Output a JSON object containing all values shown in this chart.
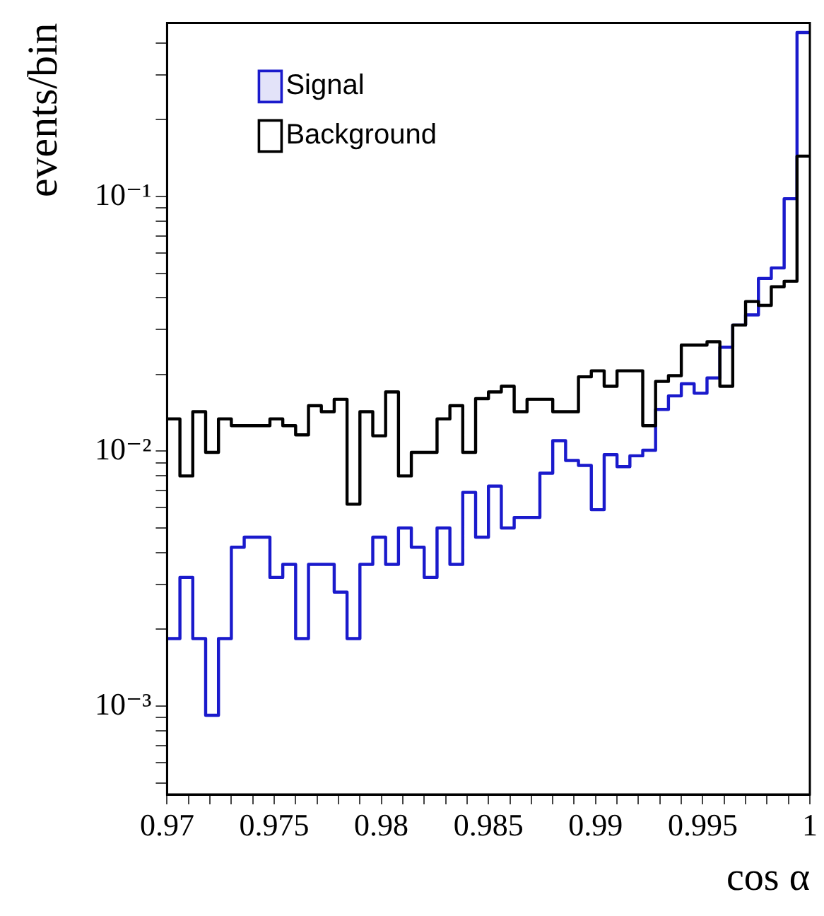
{
  "chart_data": {
    "type": "histogram",
    "xlabel": "cos α",
    "ylabel": "events/bin",
    "bins": [
      0.97,
      0.9706,
      0.9712,
      0.9718,
      0.9724,
      0.973,
      0.9736,
      0.9742,
      0.9748,
      0.9754,
      0.976,
      0.9766,
      0.9772,
      0.9778,
      0.9784,
      0.979,
      0.9796,
      0.9802,
      0.9808,
      0.9814,
      0.982,
      0.9826,
      0.9832,
      0.9838,
      0.9844,
      0.985,
      0.9856,
      0.9862,
      0.9868,
      0.9874,
      0.988,
      0.9886,
      0.9892,
      0.9898,
      0.9904,
      0.991,
      0.9916,
      0.9922,
      0.9928,
      0.9934,
      0.994,
      0.9946,
      0.9952,
      0.9958,
      0.9964,
      0.997,
      0.9976,
      0.9982,
      0.9988,
      0.9994,
      1
    ],
    "series": [
      {
        "name": "Signal",
        "color": "#1a1acc",
        "values": [
          0.00184,
          0.0032,
          0.00184,
          0.00092,
          0.00184,
          0.0042,
          0.0046,
          0.0046,
          0.0032,
          0.0036,
          0.00184,
          0.0036,
          0.0036,
          0.0028,
          0.00184,
          0.0036,
          0.0046,
          0.0036,
          0.005,
          0.0042,
          0.0032,
          0.005,
          0.0036,
          0.0069,
          0.0046,
          0.0073,
          0.005,
          0.0055,
          0.0055,
          0.0082,
          0.011,
          0.0092,
          0.0088,
          0.0059,
          0.0097,
          0.0087,
          0.0096,
          0.0101,
          0.0146,
          0.0165,
          0.0184,
          0.0169,
          0.0194,
          0.0256,
          0.0313,
          0.0343,
          0.0477,
          0.0524,
          0.098,
          0.44
        ]
      },
      {
        "name": "Background",
        "color": "#000000",
        "values": [
          0.0134,
          0.008,
          0.0143,
          0.0099,
          0.0134,
          0.0126,
          0.0126,
          0.0126,
          0.0134,
          0.0126,
          0.0116,
          0.0151,
          0.0143,
          0.016,
          0.0062,
          0.0143,
          0.0115,
          0.0171,
          0.008,
          0.0099,
          0.0099,
          0.0134,
          0.0151,
          0.0099,
          0.0161,
          0.0171,
          0.018,
          0.0143,
          0.016,
          0.016,
          0.0143,
          0.0143,
          0.0196,
          0.0207,
          0.018,
          0.0207,
          0.0207,
          0.0126,
          0.0188,
          0.0198,
          0.0261,
          0.0261,
          0.0269,
          0.018,
          0.0313,
          0.0387,
          0.0374,
          0.0442,
          0.0465,
          0.144
        ]
      }
    ],
    "xlim": [
      0.97,
      1
    ],
    "xticks": [
      0.97,
      {
        "value": 0.971,
        "label": null
      },
      {
        "value": 0.972,
        "label": null
      },
      {
        "value": 0.973,
        "label": null
      },
      {
        "value": 0.974,
        "label": null
      },
      0.975,
      {
        "value": 0.976,
        "label": null
      },
      {
        "value": 0.977,
        "label": null
      },
      {
        "value": 0.978,
        "label": null
      },
      {
        "value": 0.979,
        "label": null
      },
      0.98,
      {
        "value": 0.981,
        "label": null
      },
      {
        "value": 0.982,
        "label": null
      },
      {
        "value": 0.983,
        "label": null
      },
      {
        "value": 0.984,
        "label": null
      },
      0.985,
      {
        "value": 0.986,
        "label": null
      },
      {
        "value": 0.987,
        "label": null
      },
      {
        "value": 0.988,
        "label": null
      },
      {
        "value": 0.989,
        "label": null
      },
      0.99,
      {
        "value": 0.991,
        "label": null
      },
      {
        "value": 0.992,
        "label": null
      },
      {
        "value": 0.993,
        "label": null
      },
      {
        "value": 0.994,
        "label": null
      },
      0.995,
      {
        "value": 0.996,
        "label": null
      },
      {
        "value": 0.997,
        "label": null
      },
      {
        "value": 0.998,
        "label": null
      },
      {
        "value": 0.999,
        "label": null
      },
      1
    ],
    "ylim": [
      0.00045,
      0.48
    ],
    "log": true,
    "yticks": [
      {
        "value": 0.0005,
        "label": null
      },
      {
        "value": 0.0006,
        "label": null
      },
      {
        "value": 0.0007,
        "label": null
      },
      {
        "value": 0.0008,
        "label": null
      },
      {
        "value": 0.0009,
        "label": null
      },
      {
        "value": 0.001,
        "label": "10⁻³"
      },
      {
        "value": 0.002,
        "label": null
      },
      {
        "value": 0.003,
        "label": null
      },
      {
        "value": 0.004,
        "label": null
      },
      {
        "value": 0.005,
        "label": null
      },
      {
        "value": 0.006,
        "label": null
      },
      {
        "value": 0.007,
        "label": null
      },
      {
        "value": 0.008,
        "label": null
      },
      {
        "value": 0.009,
        "label": null
      },
      {
        "value": 0.01,
        "label": "10⁻²"
      },
      {
        "value": 0.02,
        "label": null
      },
      {
        "value": 0.03,
        "label": null
      },
      {
        "value": 0.04,
        "label": null
      },
      {
        "value": 0.05,
        "label": null
      },
      {
        "value": 0.06,
        "label": null
      },
      {
        "value": 0.07,
        "label": null
      },
      {
        "value": 0.08,
        "label": null
      },
      {
        "value": 0.09,
        "label": null
      },
      {
        "value": 0.1,
        "label": "10⁻¹"
      },
      {
        "value": 0.2,
        "label": null
      },
      {
        "value": 0.3,
        "label": null
      },
      {
        "value": 0.4,
        "label": null
      }
    ],
    "legend": "top left",
    "grid": false
  }
}
